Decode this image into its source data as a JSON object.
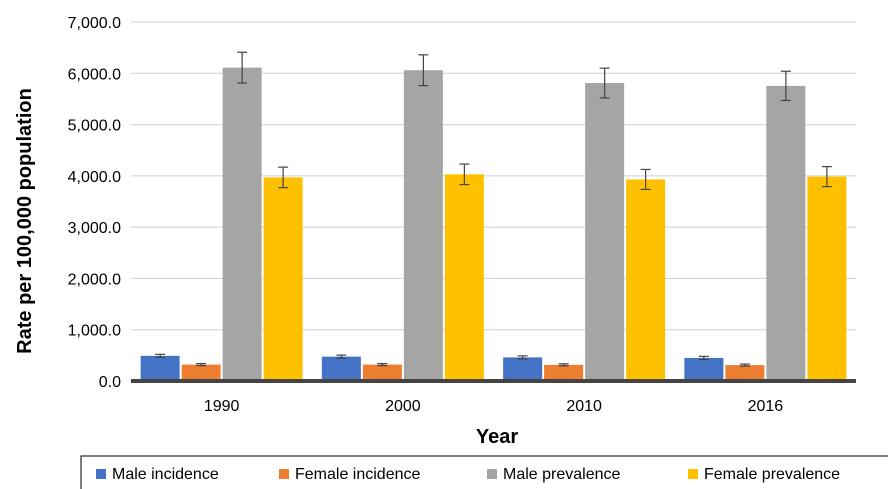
{
  "chart_data": {
    "type": "bar",
    "title": "",
    "xlabel": "Year",
    "ylabel": "Rate per 100,000 population",
    "categories": [
      "1990",
      "2000",
      "2010",
      "2016"
    ],
    "ylim": [
      0,
      7000
    ],
    "yticks": [
      0,
      1000,
      2000,
      3000,
      4000,
      5000,
      6000,
      7000
    ],
    "ytick_labels": [
      "0.0",
      "1,000.0",
      "2,000.0",
      "3,000.0",
      "4,000.0",
      "5,000.0",
      "6,000.0",
      "7,000.0"
    ],
    "grid": true,
    "legend_position": "bottom",
    "series": [
      {
        "name": "Male incidence",
        "color": "#4472C4",
        "values": [
          490,
          475,
          460,
          450
        ],
        "error": [
          30,
          30,
          30,
          30
        ]
      },
      {
        "name": "Female incidence",
        "color": "#ED7D31",
        "values": [
          320,
          320,
          315,
          310
        ],
        "error": [
          20,
          20,
          20,
          20
        ]
      },
      {
        "name": "Male prevalence",
        "color": "#A5A5A5",
        "values": [
          6110,
          6060,
          5810,
          5755
        ],
        "error": [
          300,
          300,
          290,
          285
        ]
      },
      {
        "name": "Female prevalence",
        "color": "#FFC000",
        "values": [
          3970,
          4030,
          3930,
          3985
        ],
        "error": [
          200,
          200,
          195,
          195
        ]
      }
    ]
  }
}
